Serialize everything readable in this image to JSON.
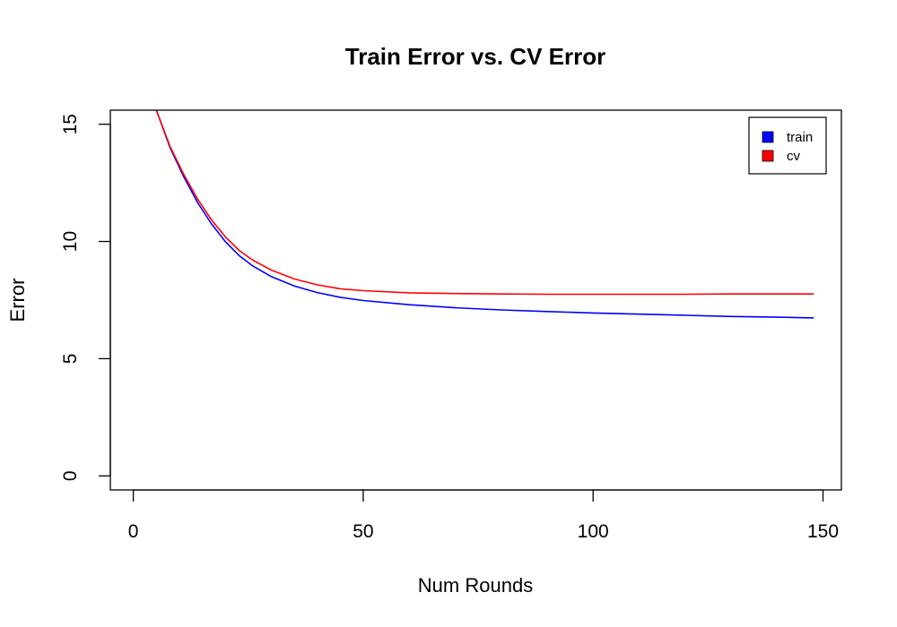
{
  "chart_data": {
    "type": "line",
    "title": "Train Error vs. CV Error",
    "xlabel": "Num Rounds",
    "ylabel": "Error",
    "xlim": [
      -5,
      154
    ],
    "ylim": [
      -0.6,
      15.6
    ],
    "x_ticks": [
      0,
      50,
      100,
      150
    ],
    "y_ticks": [
      0,
      5,
      10,
      15
    ],
    "grid": false,
    "legend_position": "top-right",
    "series": [
      {
        "name": "train",
        "color": "#0000ff",
        "x": [
          5,
          8,
          11,
          14,
          17,
          20,
          23,
          26,
          30,
          35,
          40,
          45,
          50,
          60,
          70,
          80,
          90,
          100,
          110,
          120,
          130,
          140,
          148
        ],
        "y": [
          15.6,
          14.0,
          12.75,
          11.65,
          10.75,
          10.0,
          9.4,
          8.95,
          8.5,
          8.1,
          7.82,
          7.62,
          7.48,
          7.3,
          7.17,
          7.08,
          7.01,
          6.95,
          6.9,
          6.85,
          6.8,
          6.77,
          6.74
        ]
      },
      {
        "name": "cv",
        "color": "#ff0000",
        "x": [
          5,
          8,
          11,
          14,
          17,
          20,
          23,
          26,
          30,
          35,
          40,
          45,
          50,
          60,
          70,
          80,
          90,
          100,
          110,
          120,
          130,
          140,
          148
        ],
        "y": [
          15.6,
          14.05,
          12.85,
          11.8,
          10.92,
          10.2,
          9.62,
          9.2,
          8.78,
          8.4,
          8.15,
          7.98,
          7.9,
          7.81,
          7.78,
          7.76,
          7.75,
          7.75,
          7.75,
          7.75,
          7.76,
          7.76,
          7.76
        ]
      }
    ]
  }
}
